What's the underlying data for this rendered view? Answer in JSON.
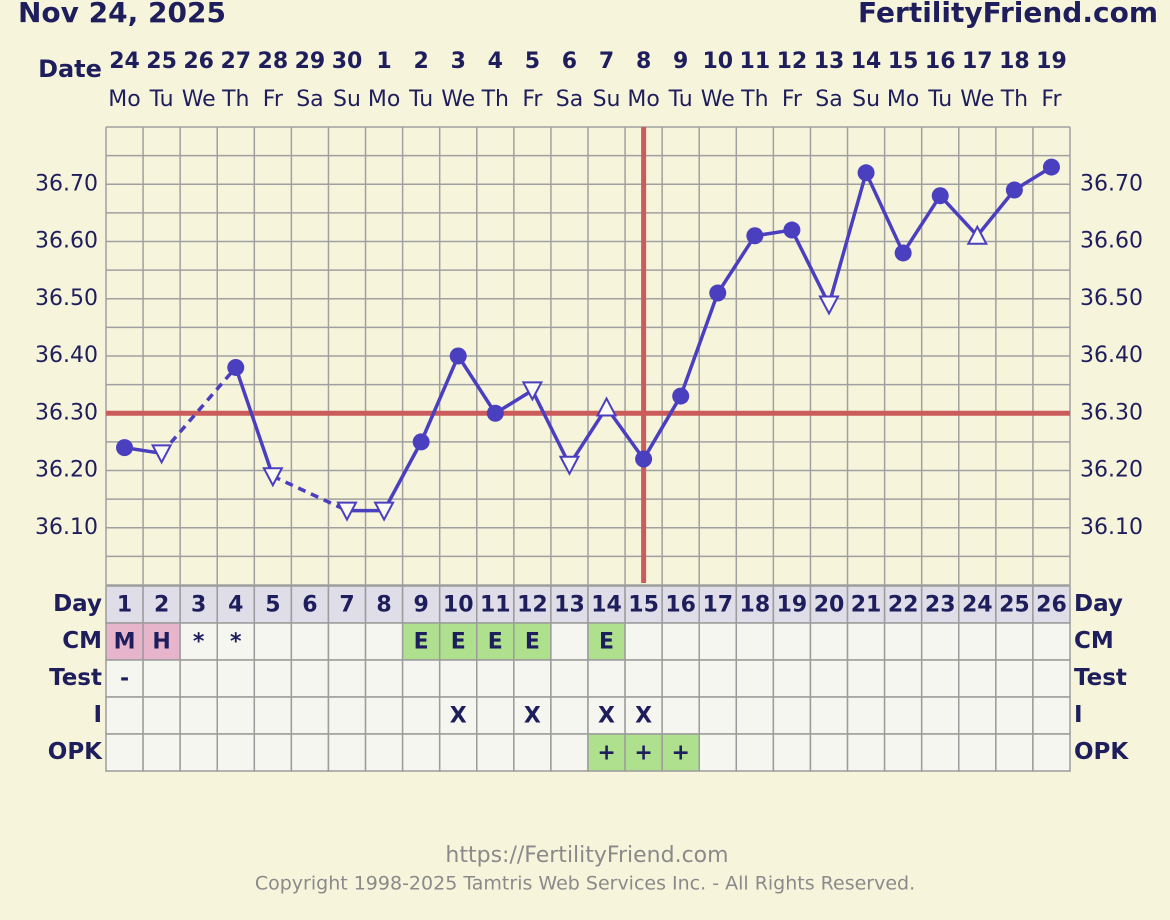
{
  "chart_data": {
    "type": "line",
    "title": "Nov 24, 2025",
    "site": "FertilityFriend.com",
    "date_label": "Date",
    "categories": [
      "24",
      "25",
      "26",
      "27",
      "28",
      "29",
      "30",
      "1",
      "2",
      "3",
      "4",
      "5",
      "6",
      "7",
      "8",
      "9",
      "10",
      "11",
      "12",
      "13",
      "14",
      "15",
      "16",
      "17",
      "18",
      "19"
    ],
    "weekdays": [
      "Mo",
      "Tu",
      "We",
      "Th",
      "Fr",
      "Sa",
      "Su",
      "Mo",
      "Tu",
      "We",
      "Th",
      "Fr",
      "Sa",
      "Su",
      "Mo",
      "Tu",
      "We",
      "Th",
      "Fr",
      "Sa",
      "Su",
      "Mo",
      "Tu",
      "We",
      "Th",
      "Fr"
    ],
    "series": [
      {
        "color": "#4a3fbf",
        "values": [
          36.24,
          36.23,
          null,
          36.38,
          36.19,
          null,
          36.13,
          36.13,
          36.25,
          36.4,
          36.3,
          36.34,
          36.21,
          36.31,
          36.22,
          36.33,
          36.51,
          36.61,
          36.62,
          36.49,
          36.72,
          36.58,
          36.68,
          36.61,
          36.69,
          36.73
        ],
        "markers": [
          "circle",
          "triangle-down",
          null,
          "circle",
          "triangle-down",
          null,
          "triangle-down",
          "triangle-down",
          "circle",
          "circle",
          "circle",
          "triangle-down",
          "triangle-down",
          "triangle-up",
          "circle",
          "circle",
          "circle",
          "circle",
          "circle",
          "triangle-down",
          "circle",
          "circle",
          "circle",
          "triangle-up",
          "circle",
          "circle"
        ]
      }
    ],
    "ylim": [
      36.0,
      36.8
    ],
    "yticks": [
      {
        "value": 36.1,
        "label": "36.10"
      },
      {
        "value": 36.2,
        "label": "36.20"
      },
      {
        "value": 36.3,
        "label": "36.30"
      },
      {
        "value": 36.4,
        "label": "36.40"
      },
      {
        "value": 36.5,
        "label": "36.50"
      },
      {
        "value": 36.6,
        "label": "36.60"
      },
      {
        "value": 36.7,
        "label": "36.70"
      }
    ],
    "ygrid_step": 0.05,
    "grid": true,
    "coverline": 36.3,
    "coverline_color": "#cc5b5b",
    "ovulation_day": 15
  },
  "table": {
    "rows": [
      {
        "label": "Day",
        "cells": [
          1,
          2,
          3,
          4,
          5,
          6,
          7,
          8,
          9,
          10,
          11,
          12,
          13,
          14,
          15,
          16,
          17,
          18,
          19,
          20,
          21,
          22,
          23,
          24,
          25,
          26
        ],
        "fill": "#dedde8"
      },
      {
        "label": "CM",
        "cells": [
          "M",
          "H",
          "*",
          "*",
          null,
          null,
          null,
          null,
          "E",
          "E",
          "E",
          "E",
          null,
          "E",
          null,
          null,
          null,
          null,
          null,
          null,
          null,
          null,
          null,
          null,
          null,
          null
        ],
        "colors": [
          "#e6b5cc",
          "#e6b5cc",
          null,
          null,
          null,
          null,
          null,
          null,
          "#aee08e",
          "#aee08e",
          "#aee08e",
          "#aee08e",
          null,
          "#aee08e",
          null,
          null,
          null,
          null,
          null,
          null,
          null,
          null,
          null,
          null,
          null,
          null
        ]
      },
      {
        "label": "Test",
        "cells": [
          "-",
          null,
          null,
          null,
          null,
          null,
          null,
          null,
          null,
          null,
          null,
          null,
          null,
          null,
          null,
          null,
          null,
          null,
          null,
          null,
          null,
          null,
          null,
          null,
          null,
          null
        ]
      },
      {
        "label": "I",
        "cells": [
          null,
          null,
          null,
          null,
          null,
          null,
          null,
          null,
          null,
          "X",
          null,
          "X",
          null,
          "X",
          "X",
          null,
          null,
          null,
          null,
          null,
          null,
          null,
          null,
          null,
          null,
          null
        ]
      },
      {
        "label": "OPK",
        "cells": [
          null,
          null,
          null,
          null,
          null,
          null,
          null,
          null,
          null,
          null,
          null,
          null,
          null,
          "+",
          "+",
          "+",
          null,
          null,
          null,
          null,
          null,
          null,
          null,
          null,
          null,
          null
        ],
        "colors": [
          null,
          null,
          null,
          null,
          null,
          null,
          null,
          null,
          null,
          null,
          null,
          null,
          null,
          "#aee08e",
          "#aee08e",
          "#aee08e",
          null,
          null,
          null,
          null,
          null,
          null,
          null,
          null,
          null,
          null
        ]
      }
    ]
  },
  "footer": {
    "url": "https://FertilityFriend.com",
    "copyright": "Copyright 1998-2025 Tamtris Web Services Inc. - All Rights Reserved."
  }
}
